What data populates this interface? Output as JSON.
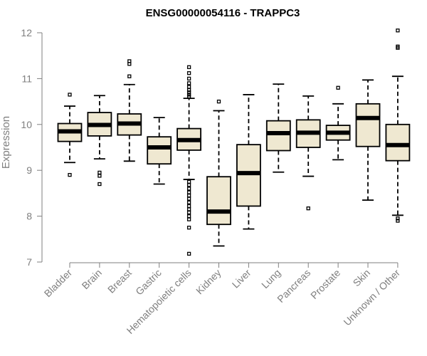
{
  "chart_data": {
    "type": "boxplot",
    "title": "ENSG00000054116 - TRAPPC3",
    "xlabel": "",
    "ylabel": "Expression",
    "ylim": [
      7,
      12
    ],
    "yticks": [
      7,
      8,
      9,
      10,
      11,
      12
    ],
    "categories": [
      "Bladder",
      "Brain",
      "Breast",
      "Gastric",
      "Hematopoietic cells",
      "Kidney",
      "Liver",
      "Lung",
      "Pancreas",
      "Prostate",
      "Skin",
      "Unknown / Other"
    ],
    "boxes": [
      {
        "category": "Bladder",
        "whisker_low": 9.17,
        "q1": 9.63,
        "median": 9.85,
        "q3": 10.02,
        "whisker_high": 10.4,
        "outliers": [
          10.65,
          8.9
        ]
      },
      {
        "category": "Brain",
        "whisker_low": 9.25,
        "q1": 9.75,
        "median": 9.99,
        "q3": 10.26,
        "whisker_high": 10.63,
        "outliers": [
          8.95,
          8.88,
          8.7
        ]
      },
      {
        "category": "Breast",
        "whisker_low": 9.2,
        "q1": 9.77,
        "median": 10.02,
        "q3": 10.23,
        "whisker_high": 10.87,
        "outliers": [
          11.38,
          11.32,
          11.05
        ]
      },
      {
        "category": "Gastric",
        "whisker_low": 8.7,
        "q1": 9.14,
        "median": 9.5,
        "q3": 9.73,
        "whisker_high": 10.15,
        "outliers": []
      },
      {
        "category": "Hematopoietic cells",
        "whisker_low": 8.8,
        "q1": 9.44,
        "median": 9.66,
        "q3": 9.91,
        "whisker_high": 10.57,
        "outliers": [
          11.25,
          11.12,
          11.0,
          10.9,
          10.82,
          10.75,
          10.7,
          10.65,
          10.61,
          8.75,
          8.68,
          8.6,
          8.52,
          8.45,
          8.38,
          8.3,
          8.22,
          8.15,
          8.08,
          8.0,
          7.93,
          7.75,
          7.18
        ]
      },
      {
        "category": "Kidney",
        "whisker_low": 7.35,
        "q1": 7.82,
        "median": 8.1,
        "q3": 8.86,
        "whisker_high": 10.3,
        "outliers": [
          10.5
        ]
      },
      {
        "category": "Liver",
        "whisker_low": 7.72,
        "q1": 8.22,
        "median": 8.94,
        "q3": 9.56,
        "whisker_high": 10.65,
        "outliers": []
      },
      {
        "category": "Lung",
        "whisker_low": 8.96,
        "q1": 9.43,
        "median": 9.81,
        "q3": 10.08,
        "whisker_high": 10.88,
        "outliers": []
      },
      {
        "category": "Pancreas",
        "whisker_low": 8.87,
        "q1": 9.5,
        "median": 9.82,
        "q3": 10.1,
        "whisker_high": 10.62,
        "outliers": [
          8.17
        ]
      },
      {
        "category": "Prostate",
        "whisker_low": 9.23,
        "q1": 9.66,
        "median": 9.82,
        "q3": 9.98,
        "whisker_high": 10.45,
        "outliers": [
          10.8
        ]
      },
      {
        "category": "Skin",
        "whisker_low": 8.35,
        "q1": 9.52,
        "median": 10.14,
        "q3": 10.45,
        "whisker_high": 10.97,
        "outliers": []
      },
      {
        "category": "Unknown / Other",
        "whisker_low": 8.02,
        "q1": 9.21,
        "median": 9.55,
        "q3": 10.0,
        "whisker_high": 11.05,
        "outliers": [
          12.05,
          11.7,
          11.67,
          7.95,
          7.9
        ]
      }
    ],
    "colors": {
      "box_fill": "#efe8d1",
      "box_stroke": "#000000",
      "median": "#000000",
      "axis": "#7f7f7f"
    },
    "grid": false,
    "legend": "none"
  }
}
